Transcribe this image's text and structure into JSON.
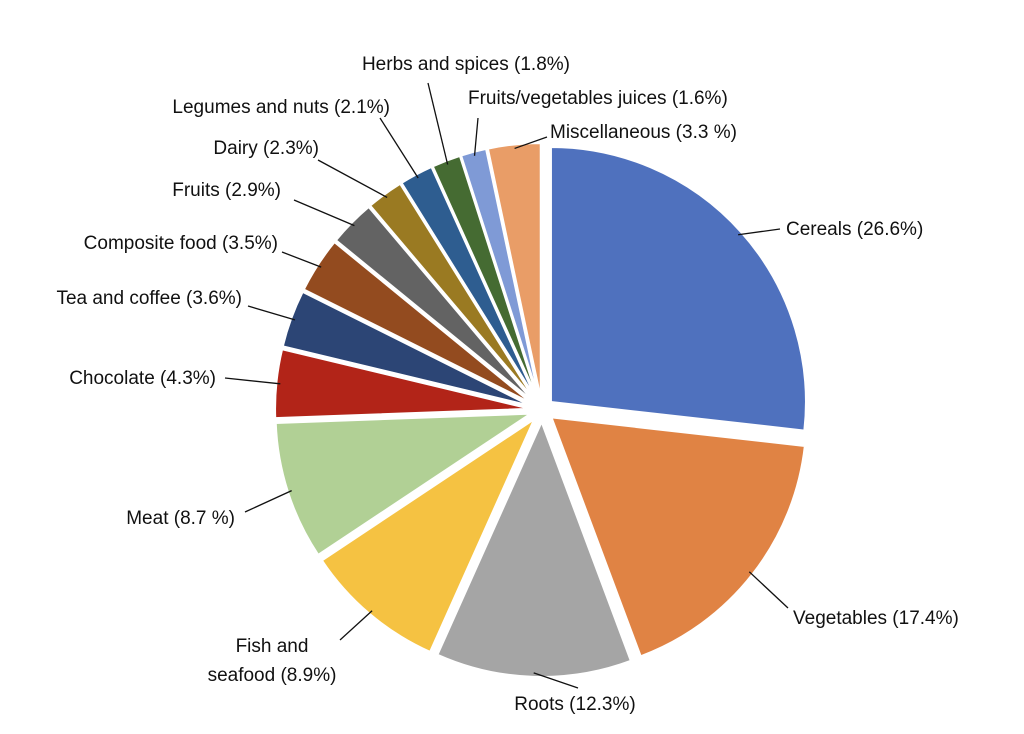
{
  "chart_data": {
    "type": "pie",
    "title": "",
    "slices": [
      {
        "label": "Cereals (26.6%)",
        "value": 26.6,
        "color": "#4f71be"
      },
      {
        "label": "Vegetables (17.4%)",
        "value": 17.4,
        "color": "#e08344"
      },
      {
        "label": "Roots (12.3%)",
        "value": 12.3,
        "color": "#a5a5a5"
      },
      {
        "label": "Fish and seafood (8.9%)",
        "label_lines": [
          "Fish and",
          "seafood (8.9%)"
        ],
        "value": 8.9,
        "color": "#f5c242"
      },
      {
        "label": "Meat (8.7 %)",
        "value": 8.7,
        "color": "#b1d095"
      },
      {
        "label": "Chocolate (4.3%)",
        "value": 4.3,
        "color": "#b22418",
        "label_color": "#c0392b"
      },
      {
        "label": "Tea and coffee (3.6%)",
        "value": 3.6,
        "color": "#2c4575"
      },
      {
        "label": "Composite food (3.5%)",
        "value": 3.5,
        "color": "#934b1f"
      },
      {
        "label": "Fruits (2.9%)",
        "value": 2.9,
        "color": "#636363"
      },
      {
        "label": "Dairy (2.3%)",
        "value": 2.3,
        "color": "#9a7a22"
      },
      {
        "label": "Legumes and nuts (2.1%)",
        "value": 2.1,
        "color": "#2e5d90"
      },
      {
        "label": "Herbs and spices (1.8%)",
        "value": 1.8,
        "color": "#456b32"
      },
      {
        "label": "Fruits/vegetables juices (1.6%)",
        "value": 1.6,
        "color": "#7f9ad6"
      },
      {
        "label": "Miscellaneous (3.3 %)",
        "value": 3.3,
        "color": "#e99d67"
      }
    ],
    "start": "12 o'clock",
    "direction": "clockwise",
    "exploded": true,
    "legend": "none"
  }
}
